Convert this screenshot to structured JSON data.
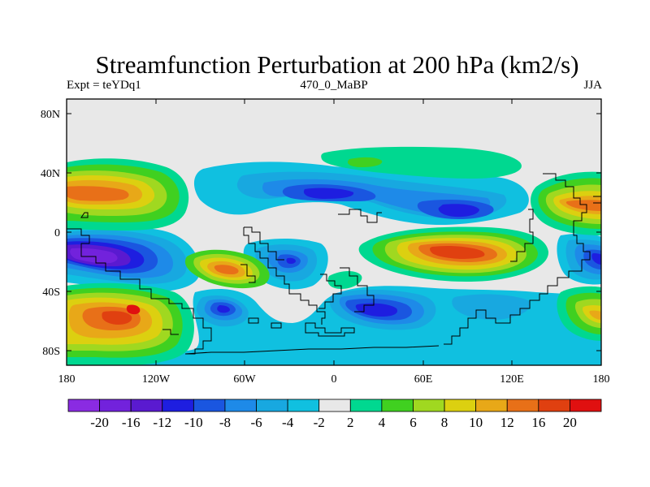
{
  "title": "Streamfunction Perturbation at 200 hPa (km2/s)",
  "left_label": "Expt = teYDq1",
  "center_label": "470_0_MaBP",
  "right_label": "JJA",
  "lat_ticks": [
    "80N",
    "40N",
    "0",
    "40S",
    "80S"
  ],
  "lon_ticks": [
    "180",
    "120W",
    "60W",
    "0",
    "60E",
    "120E",
    "180"
  ],
  "colorbar": {
    "colors": [
      "#8a2be2",
      "#7222dc",
      "#5a1ad0",
      "#1e1ee0",
      "#1a56e0",
      "#1e8ae8",
      "#18a8e0",
      "#10c0e0",
      "#e8e8e8",
      "#00d890",
      "#40d020",
      "#a0d820",
      "#dcd010",
      "#e8a818",
      "#e87018",
      "#e04010",
      "#e01010"
    ],
    "labels": [
      "-20",
      "-16",
      "-12",
      "-10",
      "-8",
      "-6",
      "-4",
      "-2",
      "2",
      "4",
      "6",
      "8",
      "10",
      "12",
      "16",
      "20"
    ]
  }
}
